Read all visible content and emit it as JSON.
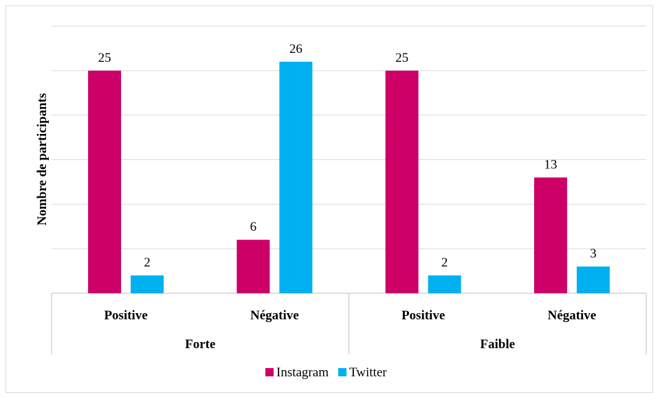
{
  "chart_data": {
    "type": "bar",
    "title": "",
    "xlabel": "",
    "ylabel": "Nombre de participants",
    "ylim": [
      0,
      30
    ],
    "ytick_step": 5,
    "show_y_tick_labels": false,
    "grid": true,
    "legend_position": "bottom",
    "groups": [
      {
        "label": "Forte",
        "categories": [
          "Positive",
          "Négative"
        ]
      },
      {
        "label": "Faible",
        "categories": [
          "Positive",
          "Négative"
        ]
      }
    ],
    "categories": [
      "Positive",
      "Négative",
      "Positive",
      "Négative"
    ],
    "series": [
      {
        "name": "Instagram",
        "color": "#CC0066",
        "values": [
          25,
          6,
          25,
          13
        ]
      },
      {
        "name": "Twitter",
        "color": "#00B0F0",
        "values": [
          2,
          26,
          2,
          3
        ]
      }
    ]
  }
}
